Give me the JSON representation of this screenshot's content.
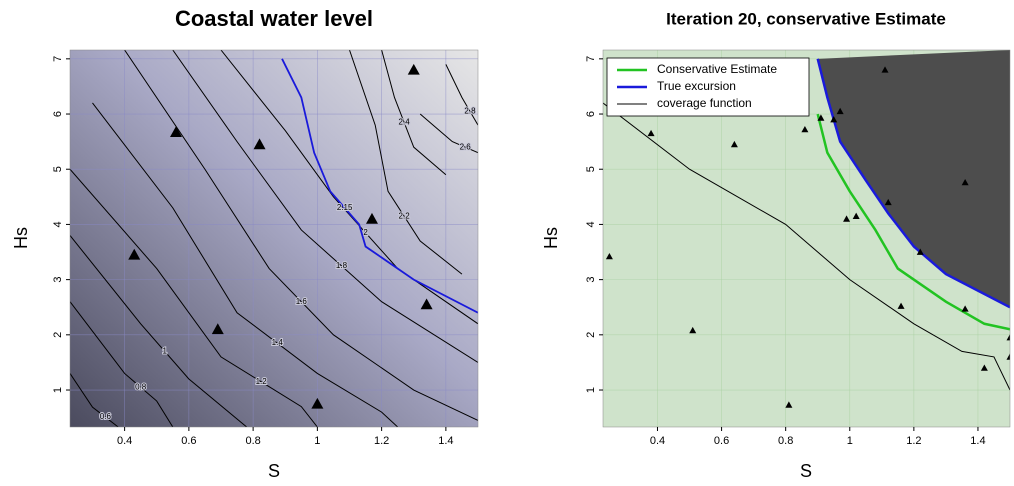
{
  "chart_data": [
    {
      "type": "contour",
      "title": "Coastal water level",
      "x_label": "S",
      "y_label": "Hs",
      "xlim": [
        0.23,
        1.5
      ],
      "ylim": [
        0.33,
        7.16
      ],
      "xticks": [
        0.4,
        0.6,
        0.8,
        1.0,
        1.2,
        1.4
      ],
      "yticks": [
        1,
        2,
        3,
        4,
        5,
        6,
        7
      ],
      "contours": [
        {
          "level": 0.6,
          "color": "#000000",
          "x": [
            0.23,
            0.3,
            0.38
          ],
          "y": [
            1.3,
            0.69,
            0.33
          ]
        },
        {
          "level": 0.8,
          "color": "#000000",
          "x": [
            0.23,
            0.4,
            0.5,
            0.55
          ],
          "y": [
            2.6,
            1.3,
            0.8,
            0.33
          ]
        },
        {
          "level": 1,
          "color": "#000000",
          "x": [
            0.23,
            0.45,
            0.6,
            0.78
          ],
          "y": [
            3.8,
            2.2,
            1.2,
            0.33
          ]
        },
        {
          "level": 1.2,
          "color": "#000000",
          "x": [
            0.23,
            0.5,
            0.7,
            0.95,
            1.0
          ],
          "y": [
            5.0,
            3.2,
            1.6,
            0.7,
            0.33
          ]
        },
        {
          "level": 1.4,
          "color": "#000000",
          "x": [
            0.3,
            0.55,
            0.75,
            1.0,
            1.2,
            1.25
          ],
          "y": [
            6.2,
            4.3,
            2.4,
            1.3,
            0.6,
            0.33
          ]
        },
        {
          "level": 1.6,
          "color": "#000000",
          "x": [
            0.4,
            0.65,
            0.85,
            1.05,
            1.3,
            1.5
          ],
          "y": [
            7.16,
            5.0,
            3.2,
            2.0,
            1.0,
            0.45
          ]
        },
        {
          "level": 1.8,
          "color": "#000000",
          "x": [
            0.55,
            0.75,
            0.95,
            1.2,
            1.5
          ],
          "y": [
            7.16,
            5.5,
            3.9,
            2.6,
            1.5
          ]
        },
        {
          "level": 2,
          "color": "#000000",
          "x": [
            0.7,
            0.9,
            1.05,
            1.25,
            1.5
          ],
          "y": [
            7.16,
            5.7,
            4.5,
            3.2,
            2.2
          ]
        },
        {
          "level": 2.15,
          "color": "#1a1adb",
          "x": [
            0.89,
            0.95,
            0.99,
            1.04,
            1.13,
            1.15,
            1.3,
            1.5
          ],
          "y": [
            7.0,
            6.3,
            5.3,
            4.6,
            4.0,
            3.6,
            3.0,
            2.4
          ]
        },
        {
          "level": 2.2,
          "color": "#000000",
          "x": [
            1.1,
            1.18,
            1.22,
            1.32,
            1.45
          ],
          "y": [
            7.16,
            5.8,
            4.6,
            3.7,
            3.1
          ]
        },
        {
          "level": 2.4,
          "color": "#000000",
          "x": [
            1.2,
            1.24,
            1.3,
            1.4
          ],
          "y": [
            7.16,
            6.3,
            5.4,
            4.9
          ]
        },
        {
          "level": 2.6,
          "color": "#000000",
          "x": [
            1.32,
            1.42,
            1.5
          ],
          "y": [
            6.0,
            5.5,
            5.3
          ]
        },
        {
          "level": 2.8,
          "color": "#000000",
          "x": [
            1.4,
            1.45,
            1.5
          ],
          "y": [
            6.9,
            6.3,
            5.8
          ]
        }
      ],
      "points": {
        "color": "#000000",
        "x": [
          0.43,
          0.56,
          0.69,
          0.82,
          1.0,
          1.17,
          1.3,
          1.34
        ],
        "y": [
          3.45,
          5.67,
          2.1,
          5.45,
          0.75,
          4.1,
          6.8,
          2.55
        ]
      }
    },
    {
      "type": "line",
      "title": "Iteration 20, conservative Estimate",
      "x_label": "S",
      "y_label": "Hs",
      "xlim": [
        0.23,
        1.5
      ],
      "ylim": [
        0.33,
        7.16
      ],
      "xticks": [
        0.4,
        0.6,
        0.8,
        1.0,
        1.2,
        1.4
      ],
      "yticks": [
        1,
        2,
        3,
        4,
        5,
        6,
        7
      ],
      "legend": "top-left",
      "series": [
        {
          "name": "Conservative Estimate",
          "color": "#22c322",
          "x": [
            0.9,
            0.93,
            1.0,
            1.08,
            1.15,
            1.3,
            1.42,
            1.5
          ],
          "y": [
            6.0,
            5.3,
            4.6,
            3.9,
            3.2,
            2.6,
            2.2,
            2.1
          ]
        },
        {
          "name": "True excursion",
          "color": "#1a1adb",
          "x": [
            0.9,
            0.93,
            0.97,
            1.05,
            1.12,
            1.2,
            1.3,
            1.5
          ],
          "y": [
            7.0,
            6.3,
            5.5,
            4.8,
            4.2,
            3.6,
            3.1,
            2.5
          ]
        },
        {
          "name": "coverage function",
          "color": "#000000",
          "x": [
            0.23,
            0.5,
            0.8,
            1.0,
            1.2,
            1.35,
            1.45,
            1.5
          ],
          "y": [
            6.2,
            5.0,
            4.0,
            3.0,
            2.2,
            1.7,
            1.6,
            1.0
          ]
        }
      ],
      "points": {
        "color": "#000000",
        "x": [
          0.25,
          0.38,
          0.51,
          0.64,
          0.81,
          0.86,
          0.91,
          0.95,
          0.97,
          0.99,
          1.02,
          1.11,
          1.12,
          1.16,
          1.22,
          1.36,
          1.36,
          1.42,
          1.5,
          1.5
        ],
        "y": [
          3.42,
          5.65,
          2.08,
          5.45,
          0.73,
          5.72,
          5.93,
          5.9,
          6.05,
          4.1,
          4.15,
          6.8,
          4.4,
          2.52,
          3.5,
          4.76,
          2.47,
          1.4,
          1.95,
          1.6
        ]
      }
    }
  ]
}
